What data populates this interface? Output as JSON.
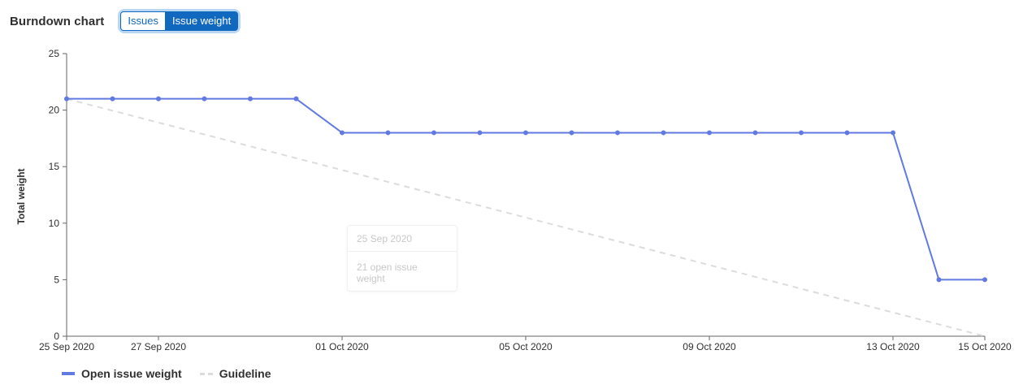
{
  "header": {
    "title": "Burndown chart",
    "toggle_issues": "Issues",
    "toggle_weight": "Issue weight",
    "active_toggle": "weight"
  },
  "colors": {
    "series": "#617ae2",
    "guideline": "#dcdcde",
    "axis": "#666666"
  },
  "chart_data": {
    "type": "line",
    "ylabel": "Total weight",
    "xlabel": "",
    "ylim": [
      0,
      25
    ],
    "yticks": [
      0,
      5,
      10,
      15,
      20,
      25
    ],
    "x": [
      "25 Sep 2020",
      "26 Sep 2020",
      "27 Sep 2020",
      "28 Sep 2020",
      "29 Sep 2020",
      "30 Sep 2020",
      "01 Oct 2020",
      "02 Oct 2020",
      "03 Oct 2020",
      "04 Oct 2020",
      "05 Oct 2020",
      "06 Oct 2020",
      "07 Oct 2020",
      "08 Oct 2020",
      "09 Oct 2020",
      "10 Oct 2020",
      "11 Oct 2020",
      "12 Oct 2020",
      "13 Oct 2020",
      "14 Oct 2020",
      "15 Oct 2020"
    ],
    "xtick_labels": [
      "25 Sep 2020",
      "27 Sep 2020",
      "01 Oct 2020",
      "05 Oct 2020",
      "09 Oct 2020",
      "13 Oct 2020",
      "15 Oct 2020"
    ],
    "series": [
      {
        "name": "Open issue weight",
        "style": "solid",
        "values": [
          21,
          21,
          21,
          21,
          21,
          21,
          18,
          18,
          18,
          18,
          18,
          18,
          18,
          18,
          18,
          18,
          18,
          18,
          18,
          5,
          5
        ]
      },
      {
        "name": "Guideline",
        "style": "dashed",
        "values": [
          21,
          null,
          null,
          null,
          null,
          null,
          null,
          null,
          null,
          null,
          null,
          null,
          null,
          null,
          null,
          null,
          null,
          null,
          null,
          null,
          0
        ]
      }
    ],
    "tooltip": {
      "title": "25 Sep 2020",
      "text": "21 open issue weight"
    }
  }
}
